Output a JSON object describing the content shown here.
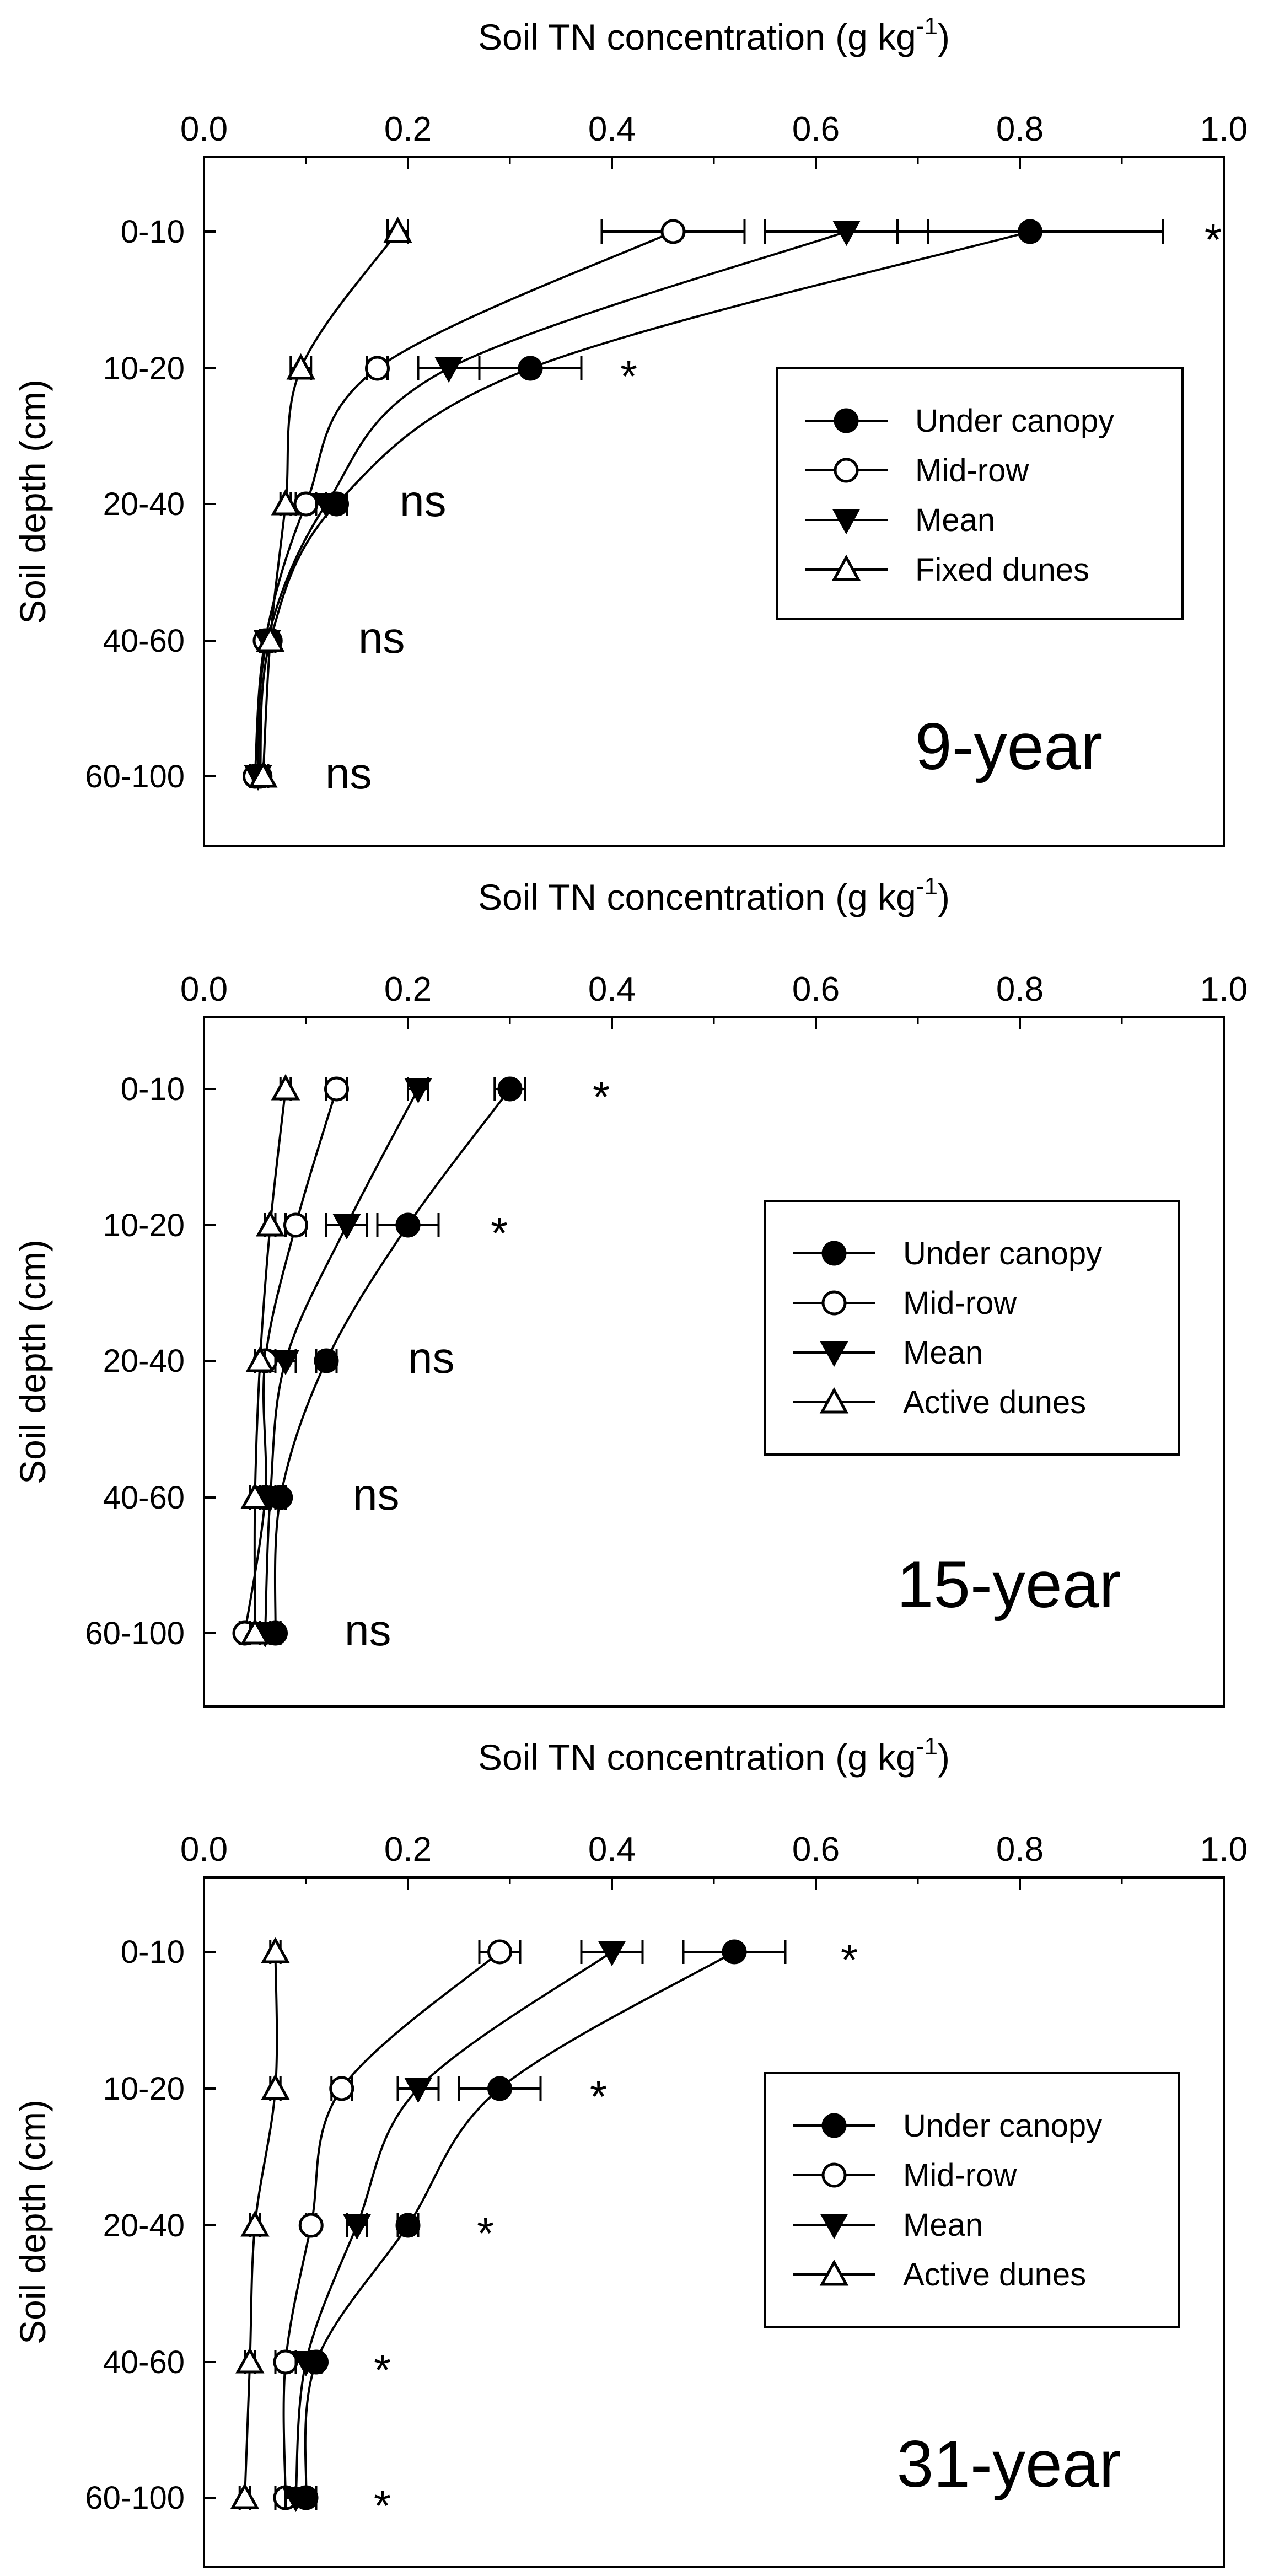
{
  "colors": {
    "line": "#000000",
    "background": "#ffffff"
  },
  "chart_data": [
    {
      "type": "line",
      "x_title": "Soil TN concentration (g kg",
      "x_title_sup": "-1",
      "x_title_close": ")",
      "y_title": "Soil depth (cm)",
      "xlim": [
        0.0,
        1.0
      ],
      "x_ticks": [
        "0.0",
        "0.2",
        "0.4",
        "0.6",
        "0.8",
        "1.0"
      ],
      "depths": [
        "0-10",
        "10-20",
        "20-40",
        "40-60",
        "60-100"
      ],
      "panel_label": "9-year",
      "series": [
        {
          "name": "Under canopy",
          "marker": "circle-filled",
          "values": [
            0.81,
            0.32,
            0.13,
            0.065,
            0.055
          ],
          "errors": [
            0.13,
            0.05,
            0.01,
            0.005,
            0.005
          ]
        },
        {
          "name": "Mid-row",
          "marker": "circle-open",
          "values": [
            0.46,
            0.17,
            0.1,
            0.06,
            0.05
          ],
          "errors": [
            0.07,
            0.01,
            0.01,
            0.005,
            0.005
          ]
        },
        {
          "name": "Mean",
          "marker": "triangle-down-filled",
          "values": [
            0.63,
            0.24,
            0.12,
            0.062,
            0.053
          ],
          "errors": [
            0.08,
            0.03,
            0.01,
            0.005,
            0.005
          ]
        },
        {
          "name": "Fixed dunes",
          "marker": "triangle-open",
          "values": [
            0.19,
            0.095,
            0.08,
            0.065,
            0.058
          ],
          "errors": [
            0.01,
            0.01,
            0.005,
            0.005,
            0.005
          ]
        }
      ],
      "significance": [
        "*",
        "*",
        "ns",
        "ns",
        "ns"
      ],
      "legend_position": "center-right"
    },
    {
      "type": "line",
      "x_title": "Soil TN concentration (g kg",
      "x_title_sup": "-1",
      "x_title_close": ")",
      "y_title": "Soil depth (cm)",
      "xlim": [
        0.0,
        1.0
      ],
      "x_ticks": [
        "0.0",
        "0.2",
        "0.4",
        "0.6",
        "0.8",
        "1.0"
      ],
      "depths": [
        "0-10",
        "10-20",
        "20-40",
        "40-60",
        "60-100"
      ],
      "panel_label": "15-year",
      "series": [
        {
          "name": "Under canopy",
          "marker": "circle-filled",
          "values": [
            0.3,
            0.2,
            0.12,
            0.075,
            0.07
          ],
          "errors": [
            0.015,
            0.03,
            0.01,
            0.005,
            0.005
          ]
        },
        {
          "name": "Mid-row",
          "marker": "circle-open",
          "values": [
            0.13,
            0.09,
            0.06,
            0.06,
            0.04
          ],
          "errors": [
            0.01,
            0.01,
            0.005,
            0.005,
            0.005
          ]
        },
        {
          "name": "Mean",
          "marker": "triangle-down-filled",
          "values": [
            0.21,
            0.14,
            0.08,
            0.065,
            0.06
          ],
          "errors": [
            0.01,
            0.02,
            0.01,
            0.005,
            0.005
          ]
        },
        {
          "name": "Active dunes",
          "marker": "triangle-open",
          "values": [
            0.08,
            0.065,
            0.055,
            0.05,
            0.05
          ],
          "errors": [
            0.005,
            0.005,
            0.005,
            0.005,
            0.005
          ]
        }
      ],
      "significance": [
        "*",
        "*",
        "ns",
        "ns",
        "ns"
      ],
      "legend_position": "center-right"
    },
    {
      "type": "line",
      "x_title": "Soil TN concentration (g kg",
      "x_title_sup": "-1",
      "x_title_close": ")",
      "y_title": "Soil depth (cm)",
      "xlim": [
        0.0,
        1.0
      ],
      "x_ticks": [
        "0.0",
        "0.2",
        "0.4",
        "0.6",
        "0.8",
        "1.0"
      ],
      "depths": [
        "0-10",
        "10-20",
        "20-40",
        "40-60",
        "60-100"
      ],
      "panel_label": "31-year",
      "series": [
        {
          "name": "Under canopy",
          "marker": "circle-filled",
          "values": [
            0.52,
            0.29,
            0.2,
            0.11,
            0.1
          ],
          "errors": [
            0.05,
            0.04,
            0.01,
            0.005,
            0.01
          ]
        },
        {
          "name": "Mid-row",
          "marker": "circle-open",
          "values": [
            0.29,
            0.135,
            0.105,
            0.08,
            0.08
          ],
          "errors": [
            0.02,
            0.01,
            0.005,
            0.01,
            0.01
          ]
        },
        {
          "name": "Mean",
          "marker": "triangle-down-filled",
          "values": [
            0.4,
            0.21,
            0.15,
            0.1,
            0.09
          ],
          "errors": [
            0.03,
            0.02,
            0.01,
            0.01,
            0.01
          ]
        },
        {
          "name": "Active dunes",
          "marker": "triangle-open",
          "values": [
            0.07,
            0.07,
            0.05,
            0.045,
            0.04
          ],
          "errors": [
            0.005,
            0.005,
            0.005,
            0.005,
            0.005
          ]
        }
      ],
      "significance": [
        "*",
        "*",
        "*",
        "*",
        "*"
      ],
      "legend_position": "center-right"
    }
  ]
}
